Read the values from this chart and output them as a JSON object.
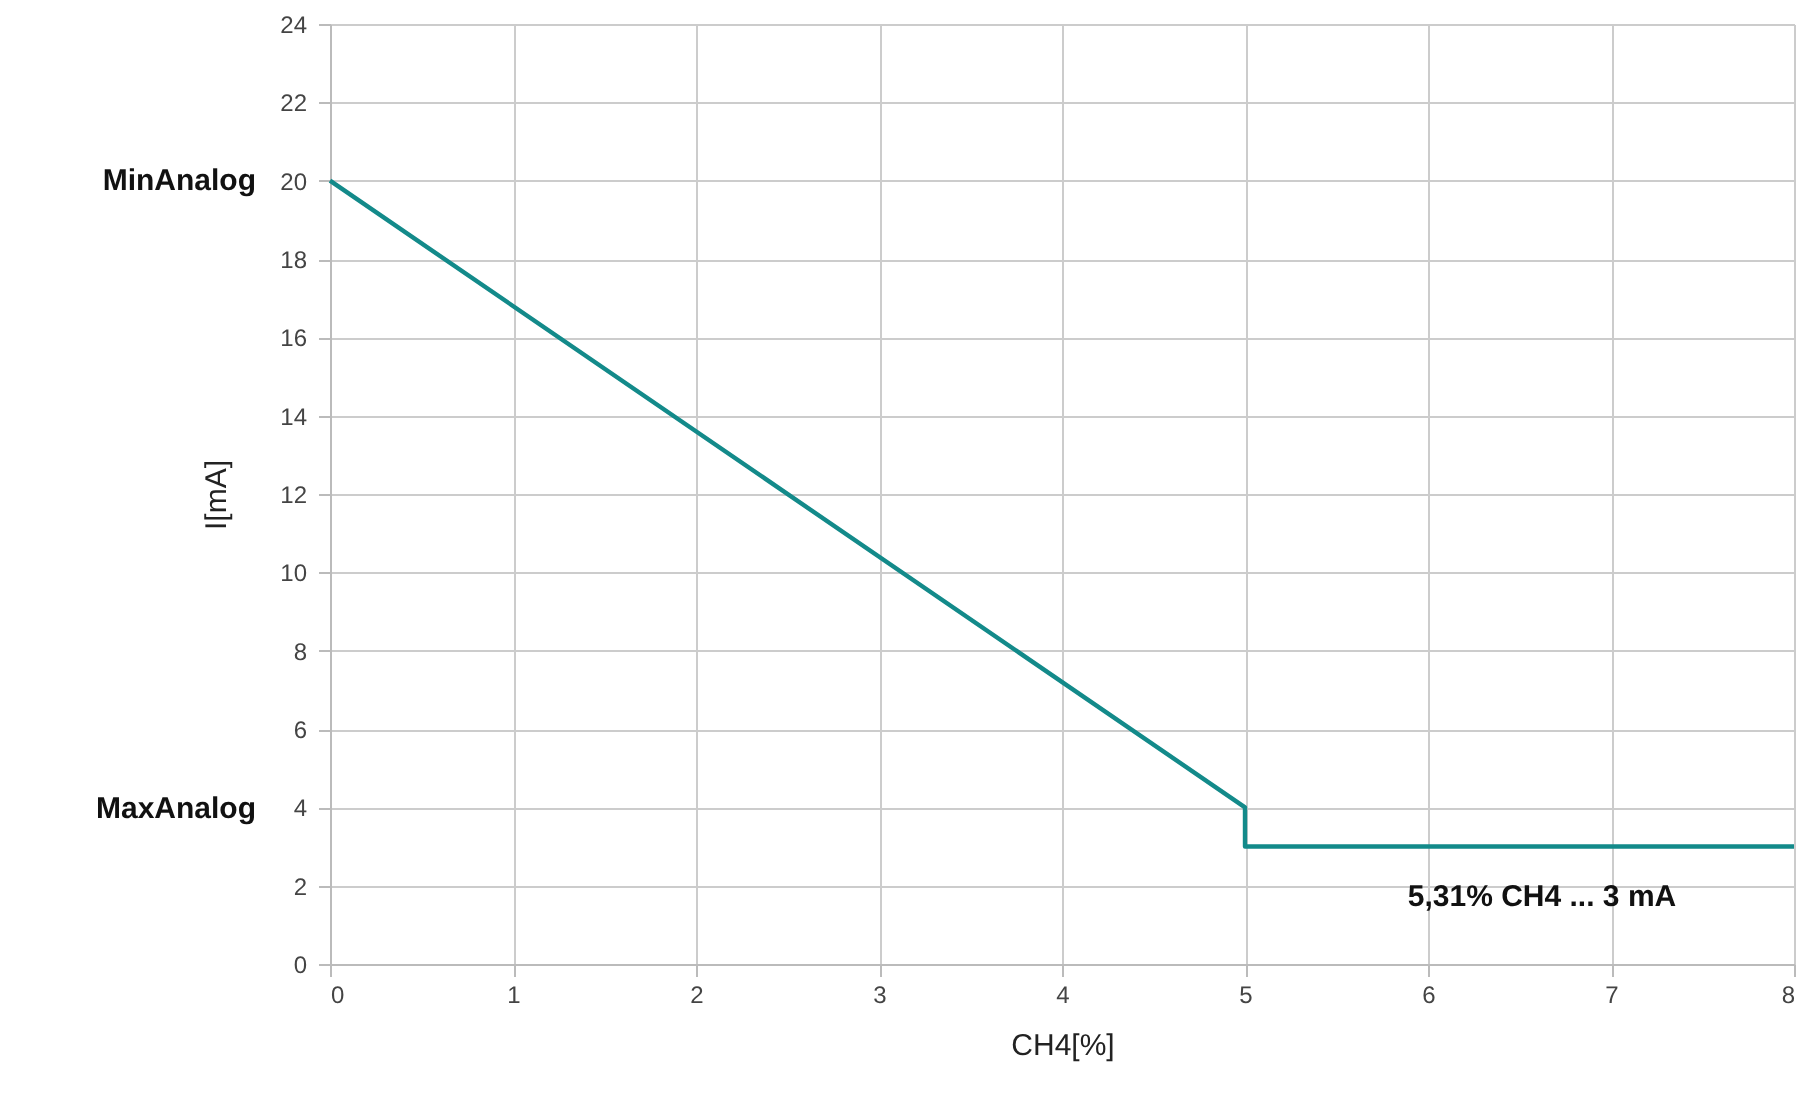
{
  "chart_data": {
    "type": "line",
    "xlabel": "CH4[%]",
    "ylabel": "I[mA]",
    "series": [
      {
        "color": "#138a8a",
        "x": [
          0,
          5,
          5,
          8
        ],
        "values": [
          20,
          4,
          3,
          3
        ]
      }
    ],
    "xlim": [
      0,
      8
    ],
    "xticks": [
      0,
      1,
      2,
      3,
      4,
      5,
      6,
      7,
      8
    ],
    "ylim": [
      0,
      24
    ],
    "yticks": [
      0,
      2,
      4,
      6,
      8,
      10,
      12,
      14,
      16,
      18,
      20,
      22,
      24
    ],
    "grid": true,
    "annotations": [
      "MinAnalog",
      "MaxAnalog",
      "5,31% CH4 ...   3 mA"
    ]
  }
}
